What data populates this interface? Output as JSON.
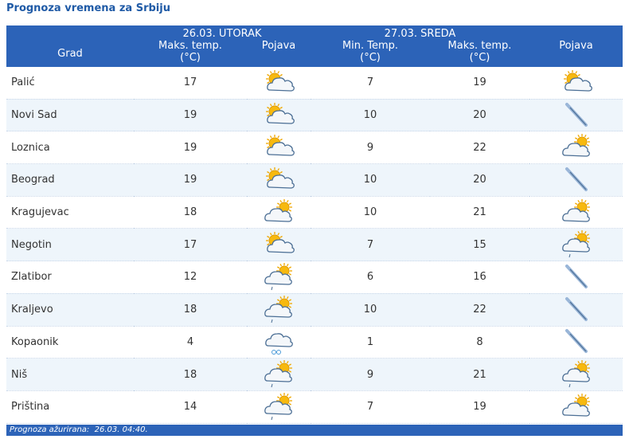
{
  "title": "Prognoza vremena za Srbiju",
  "table": {
    "date_headers": [
      "26.03. UTORAK",
      "27.03. SREDA"
    ],
    "columns": [
      "Grad",
      "Maks. temp.\n(°C)",
      "Pojava",
      "Min. Temp.\n(°C)",
      "Maks. temp.\n(°C)",
      "Pojava"
    ],
    "rows": [
      [
        "Palić",
        17,
        7,
        19
      ],
      [
        "Novi Sad",
        19,
        10,
        20
      ],
      [
        "Loznica",
        19,
        9,
        22
      ],
      [
        "Beograd",
        19,
        10,
        20
      ],
      [
        "Kragujevac",
        18,
        10,
        21
      ],
      [
        "Negotin",
        17,
        7,
        15
      ],
      [
        "Zlatibor",
        12,
        6,
        16
      ],
      [
        "Kraljevo",
        18,
        10,
        22
      ],
      [
        "Kopaonik",
        4,
        1,
        8
      ],
      [
        "Niš",
        18,
        9,
        21
      ],
      [
        "Priština",
        14,
        7,
        19
      ]
    ]
  },
  "footer": "Prognoza ažurirana:  26.03. 04:40."
}
